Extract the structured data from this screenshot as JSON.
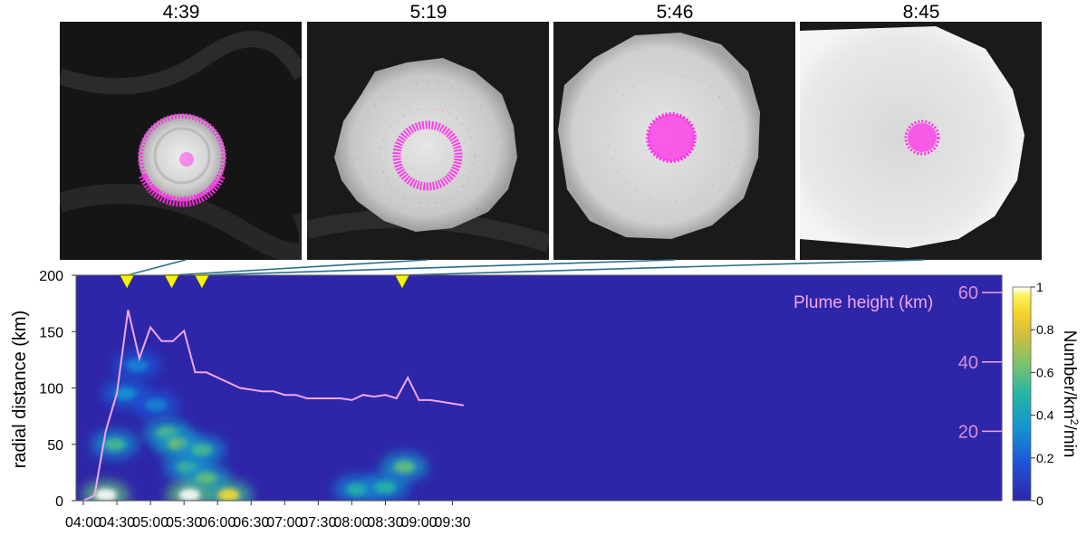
{
  "panels": [
    {
      "time_label": "4:39"
    },
    {
      "time_label": "5:19"
    },
    {
      "time_label": "5:46"
    },
    {
      "time_label": "8:45"
    }
  ],
  "colors": {
    "background": "#2e26a8",
    "plume_line": "#f0a6f0",
    "marker": "#f5f500",
    "lightning_dots": "#ff2fe8",
    "connector": "#2a6e8c"
  },
  "chart_data": {
    "type": "heatmap",
    "x_axis": {
      "ticks": [
        "04:00",
        "04:30",
        "05:00",
        "05:30",
        "06:00",
        "06:30",
        "07:00",
        "07:30",
        "08:00",
        "08:30",
        "09:00",
        "09:30"
      ],
      "range": [
        "04:00",
        "09:40"
      ]
    },
    "y_axis": {
      "label": "radial distance (km)",
      "ticks": [
        "0",
        "50",
        "100",
        "150",
        "200"
      ],
      "range": [
        0,
        200
      ]
    },
    "right_axis": {
      "ticks": [
        "20",
        "40",
        "60"
      ],
      "range": [
        0,
        65
      ]
    },
    "colorbar": {
      "label_parts": [
        "Number/km",
        "2",
        "/min"
      ],
      "ticks": [
        "0",
        "0.2",
        "0.4",
        "0.6",
        "0.8",
        "1"
      ],
      "range": [
        0,
        1
      ],
      "colormap": "parula"
    },
    "markers": [
      "04:39",
      "05:19",
      "05:46",
      "08:45"
    ],
    "plume_height": {
      "label": "Plume height (km)",
      "x": [
        "04:00",
        "04:10",
        "04:20",
        "04:30",
        "04:40",
        "04:50",
        "05:00",
        "05:10",
        "05:20",
        "05:30",
        "05:40",
        "05:50",
        "06:00",
        "06:10",
        "06:20",
        "06:30",
        "06:40",
        "06:50",
        "07:00",
        "07:10",
        "07:20",
        "07:30",
        "07:40",
        "07:50",
        "08:00",
        "08:10",
        "08:20",
        "08:30",
        "08:40",
        "08:50",
        "09:00",
        "09:10",
        "09:20",
        "09:30",
        "09:40"
      ],
      "y": [
        0,
        1.5,
        20,
        31,
        55,
        41,
        50,
        46,
        46,
        49,
        37,
        37,
        35.5,
        34,
        32.5,
        32,
        31.5,
        31.5,
        30.5,
        30.5,
        29.5,
        29.5,
        29.5,
        29.5,
        29,
        30.5,
        30,
        30.5,
        29.5,
        35.5,
        29,
        29,
        28.5,
        28,
        27.5
      ]
    },
    "density_blobs": [
      {
        "t": "04:20",
        "r": 5,
        "value": 1.0
      },
      {
        "t": "04:28",
        "r": 50,
        "value": 0.55
      },
      {
        "t": "04:38",
        "r": 95,
        "value": 0.35
      },
      {
        "t": "04:48",
        "r": 120,
        "value": 0.3
      },
      {
        "t": "05:05",
        "r": 85,
        "value": 0.3
      },
      {
        "t": "05:15",
        "r": 60,
        "value": 0.6
      },
      {
        "t": "05:25",
        "r": 50,
        "value": 0.65
      },
      {
        "t": "05:33",
        "r": 30,
        "value": 0.55
      },
      {
        "t": "05:46",
        "r": 45,
        "value": 0.55
      },
      {
        "t": "05:50",
        "r": 20,
        "value": 0.6
      },
      {
        "t": "05:35",
        "r": 5,
        "value": 1.0
      },
      {
        "t": "06:10",
        "r": 5,
        "value": 0.9
      },
      {
        "t": "08:05",
        "r": 10,
        "value": 0.5
      },
      {
        "t": "08:30",
        "r": 12,
        "value": 0.5
      },
      {
        "t": "08:47",
        "r": 30,
        "value": 0.6
      }
    ]
  }
}
